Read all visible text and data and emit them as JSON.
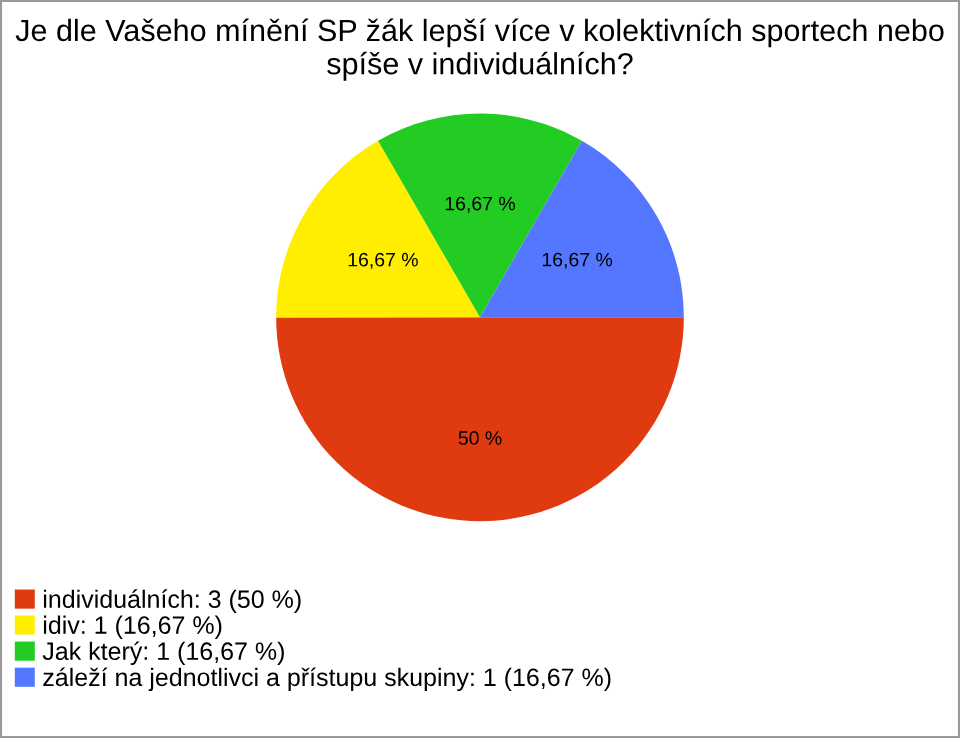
{
  "chart_data": {
    "type": "pie",
    "title": "Je dle Vašeho mínění SP žák lepší více v kolektivních sportech nebo spíše v individuálních?",
    "categories": [
      "individuálních: 3 (50 %)",
      "idiv: 1 (16,67 %)",
      "Jak který: 1 (16,67 %)",
      "záleží na jednotlivci a přístupu skupiny: 1 (16,67 %)"
    ],
    "values": [
      50,
      16.67,
      16.67,
      16.67
    ],
    "value_labels": [
      "50 %",
      "16,67 %",
      "16,67 %",
      "16,67 %"
    ],
    "colors": [
      "#e03a10",
      "#ffee00",
      "#22cc22",
      "#5577ff"
    ],
    "legend": "bottom left"
  }
}
